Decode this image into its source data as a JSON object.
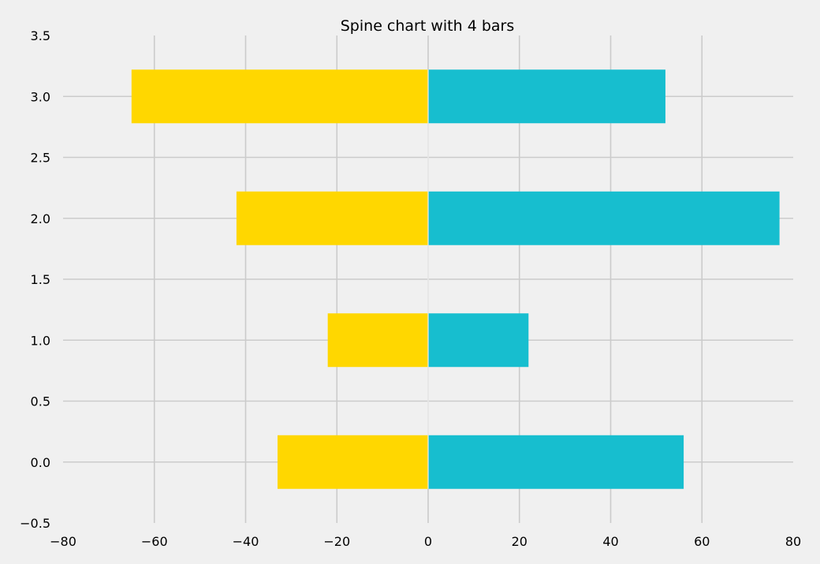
{
  "chart_data": {
    "type": "bar",
    "orientation": "horizontal",
    "title": "Spine chart with 4 bars",
    "xlabel": "",
    "ylabel": "",
    "xlim": [
      -80,
      80
    ],
    "ylim": [
      -0.5,
      3.5
    ],
    "grid": true,
    "bar_height": 0.44,
    "xticks": [
      -80,
      -60,
      -40,
      -20,
      0,
      20,
      40,
      60,
      80
    ],
    "xtick_labels": [
      "−80",
      "−60",
      "−40",
      "−20",
      "0",
      "20",
      "40",
      "60",
      "80"
    ],
    "yticks": [
      -0.5,
      0.0,
      0.5,
      1.0,
      1.5,
      2.0,
      2.5,
      3.0,
      3.5
    ],
    "ytick_labels": [
      "−0.5",
      "0.0",
      "0.5",
      "1.0",
      "1.5",
      "2.0",
      "2.5",
      "3.0",
      "3.5"
    ],
    "categories": [
      0,
      1,
      2,
      3
    ],
    "series": [
      {
        "color": "#ffd700",
        "values": [
          -33,
          -22,
          -42,
          -65
        ]
      },
      {
        "color": "#17becf",
        "values": [
          56,
          22,
          77,
          52
        ]
      }
    ]
  },
  "colors": {
    "background": "#f0f0f0",
    "grid": "#cbcbcb",
    "text": "#000000"
  }
}
